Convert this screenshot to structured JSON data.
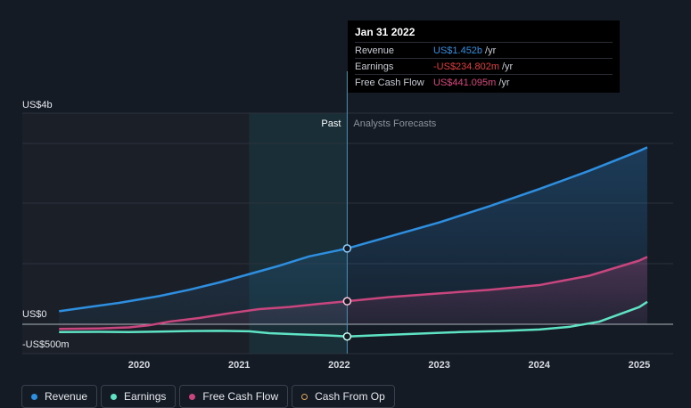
{
  "chart_data": {
    "type": "line",
    "x_ticks": [
      "2020",
      "2021",
      "2022",
      "2023",
      "2024",
      "2025"
    ],
    "y_labels": [
      "US$4b",
      "US$0",
      "-US$500m"
    ],
    "ylim": [
      -500,
      3500
    ],
    "grid": true,
    "past_label": "Past",
    "forecast_label": "Analysts Forecasts",
    "series": [
      {
        "name": "Revenue",
        "color": "#2e8fe0",
        "fill": true,
        "x": [
          2019.2,
          2019.5,
          2019.8,
          2020.2,
          2020.5,
          2020.8,
          2021.1,
          2021.4,
          2021.7,
          2022.0,
          2022.08,
          2022.5,
          2023.0,
          2023.5,
          2024.0,
          2024.5,
          2025.0,
          2025.08
        ],
        "values": [
          250,
          330,
          410,
          540,
          660,
          800,
          960,
          1120,
          1300,
          1420,
          1452,
          1680,
          1950,
          2260,
          2590,
          2940,
          3320,
          3390
        ]
      },
      {
        "name": "Free Cash Flow",
        "color": "#c9457e",
        "fill": true,
        "x": [
          2019.2,
          2019.6,
          2019.9,
          2020.1,
          2020.3,
          2020.6,
          2020.9,
          2021.2,
          2021.5,
          2021.8,
          2022.08,
          2022.5,
          2023.0,
          2023.5,
          2024.0,
          2024.5,
          2025.0,
          2025.08
        ],
        "values": [
          -90,
          -80,
          -60,
          -20,
          50,
          120,
          210,
          290,
          330,
          390,
          441,
          520,
          590,
          660,
          750,
          930,
          1220,
          1290
        ]
      },
      {
        "name": "Earnings",
        "color": "#5fe3c5",
        "fill": false,
        "x": [
          2019.2,
          2019.6,
          2019.9,
          2020.2,
          2020.5,
          2020.8,
          2021.1,
          2021.3,
          2021.6,
          2021.9,
          2022.08,
          2022.4,
          2022.8,
          2023.2,
          2023.6,
          2024.0,
          2024.3,
          2024.6,
          2025.0,
          2025.08
        ],
        "values": [
          -150,
          -145,
          -150,
          -140,
          -130,
          -125,
          -135,
          -170,
          -195,
          -215,
          -234,
          -210,
          -180,
          -150,
          -130,
          -100,
          -50,
          50,
          330,
          430
        ]
      }
    ],
    "tooltip": {
      "date": "Jan 31 2022",
      "rows": [
        {
          "label": "Revenue",
          "value": "US$1.452b",
          "unit": "/yr",
          "color": "#2e8fe0"
        },
        {
          "label": "Earnings",
          "value": "-US$234.802m",
          "unit": "/yr",
          "color": "#e23c3c"
        },
        {
          "label": "Free Cash Flow",
          "value": "US$441.095m",
          "unit": "/yr",
          "color": "#d8457f"
        }
      ]
    },
    "legend": [
      {
        "label": "Revenue",
        "color": "#2e8fe0",
        "hollow": false
      },
      {
        "label": "Earnings",
        "color": "#5fe3c5",
        "hollow": false
      },
      {
        "label": "Free Cash Flow",
        "color": "#c9457e",
        "hollow": false
      },
      {
        "label": "Cash From Op",
        "color": "#e0a45a",
        "hollow": true
      }
    ]
  }
}
